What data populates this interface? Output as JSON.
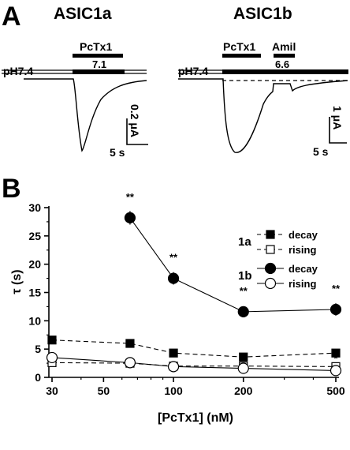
{
  "panel_a": {
    "letter": "A",
    "left": {
      "title": "ASIC1a",
      "baseline_ph": "pH7.4",
      "toxin": "PcTx1",
      "test_ph": "7.1",
      "scale_current": "0.2 μA",
      "scale_time": "5 s"
    },
    "right": {
      "title": "ASIC1b",
      "baseline_ph": "pH7.4",
      "toxin": "PcTx1",
      "blocker": "Amil",
      "test_ph": "6.6",
      "scale_current": "1 μA",
      "scale_time": "5 s"
    }
  },
  "panel_b": {
    "letter": "B"
  },
  "chart_data": {
    "type": "scatter",
    "xlabel": "[PcTx1] (nM)",
    "ylabel": "τ (s)",
    "x_scale": "log",
    "xlim": [
      30,
      500
    ],
    "ylim": [
      0,
      30
    ],
    "x_ticks": [
      "30",
      "50",
      "100",
      "200",
      "500"
    ],
    "y_ticks": [
      "0",
      "5",
      "10",
      "15",
      "20",
      "25",
      "30"
    ],
    "legend_placement": "top-right",
    "legend_groups": [
      {
        "label": "1a",
        "entries": [
          "decay",
          "rising"
        ]
      },
      {
        "label": "1b",
        "entries": [
          "decay",
          "rising"
        ]
      }
    ],
    "series": [
      {
        "name": "decay",
        "group": "1a",
        "marker": "filled-square",
        "line": "dashed",
        "x": [
          30,
          65,
          100,
          200,
          500
        ],
        "y": [
          6.6,
          6.0,
          4.3,
          3.6,
          4.3
        ],
        "err": [
          0.2,
          0.2,
          0.2,
          0.2,
          0.2
        ]
      },
      {
        "name": "rising",
        "group": "1a",
        "marker": "open-square",
        "line": "dashed",
        "x": [
          30,
          65,
          100,
          200,
          500
        ],
        "y": [
          2.6,
          2.5,
          2.0,
          2.0,
          1.9
        ],
        "err": [
          0.2,
          0.2,
          0.2,
          0.2,
          0.2
        ]
      },
      {
        "name": "decay",
        "group": "1b",
        "marker": "filled-circle",
        "line": "solid",
        "x": [
          65,
          100,
          200,
          500
        ],
        "y": [
          28.2,
          17.5,
          11.6,
          12.0
        ],
        "err": [
          1.2,
          1.1,
          0.7,
          1.1
        ]
      },
      {
        "name": "rising",
        "group": "1b",
        "marker": "open-circle",
        "line": "solid",
        "x": [
          30,
          65,
          100,
          200,
          500
        ],
        "y": [
          3.5,
          2.6,
          1.9,
          1.6,
          1.2
        ],
        "err": [
          0.4,
          0.3,
          0.3,
          0.3,
          0.3
        ]
      }
    ],
    "annotations": [
      {
        "x": 65,
        "y": 28.2,
        "text": "**"
      },
      {
        "x": 100,
        "y": 17.5,
        "text": "**"
      },
      {
        "x": 200,
        "y": 11.6,
        "text": "**"
      },
      {
        "x": 500,
        "y": 12.0,
        "text": "**"
      },
      {
        "x": 500,
        "y": 1.9,
        "text": "*"
      }
    ]
  }
}
